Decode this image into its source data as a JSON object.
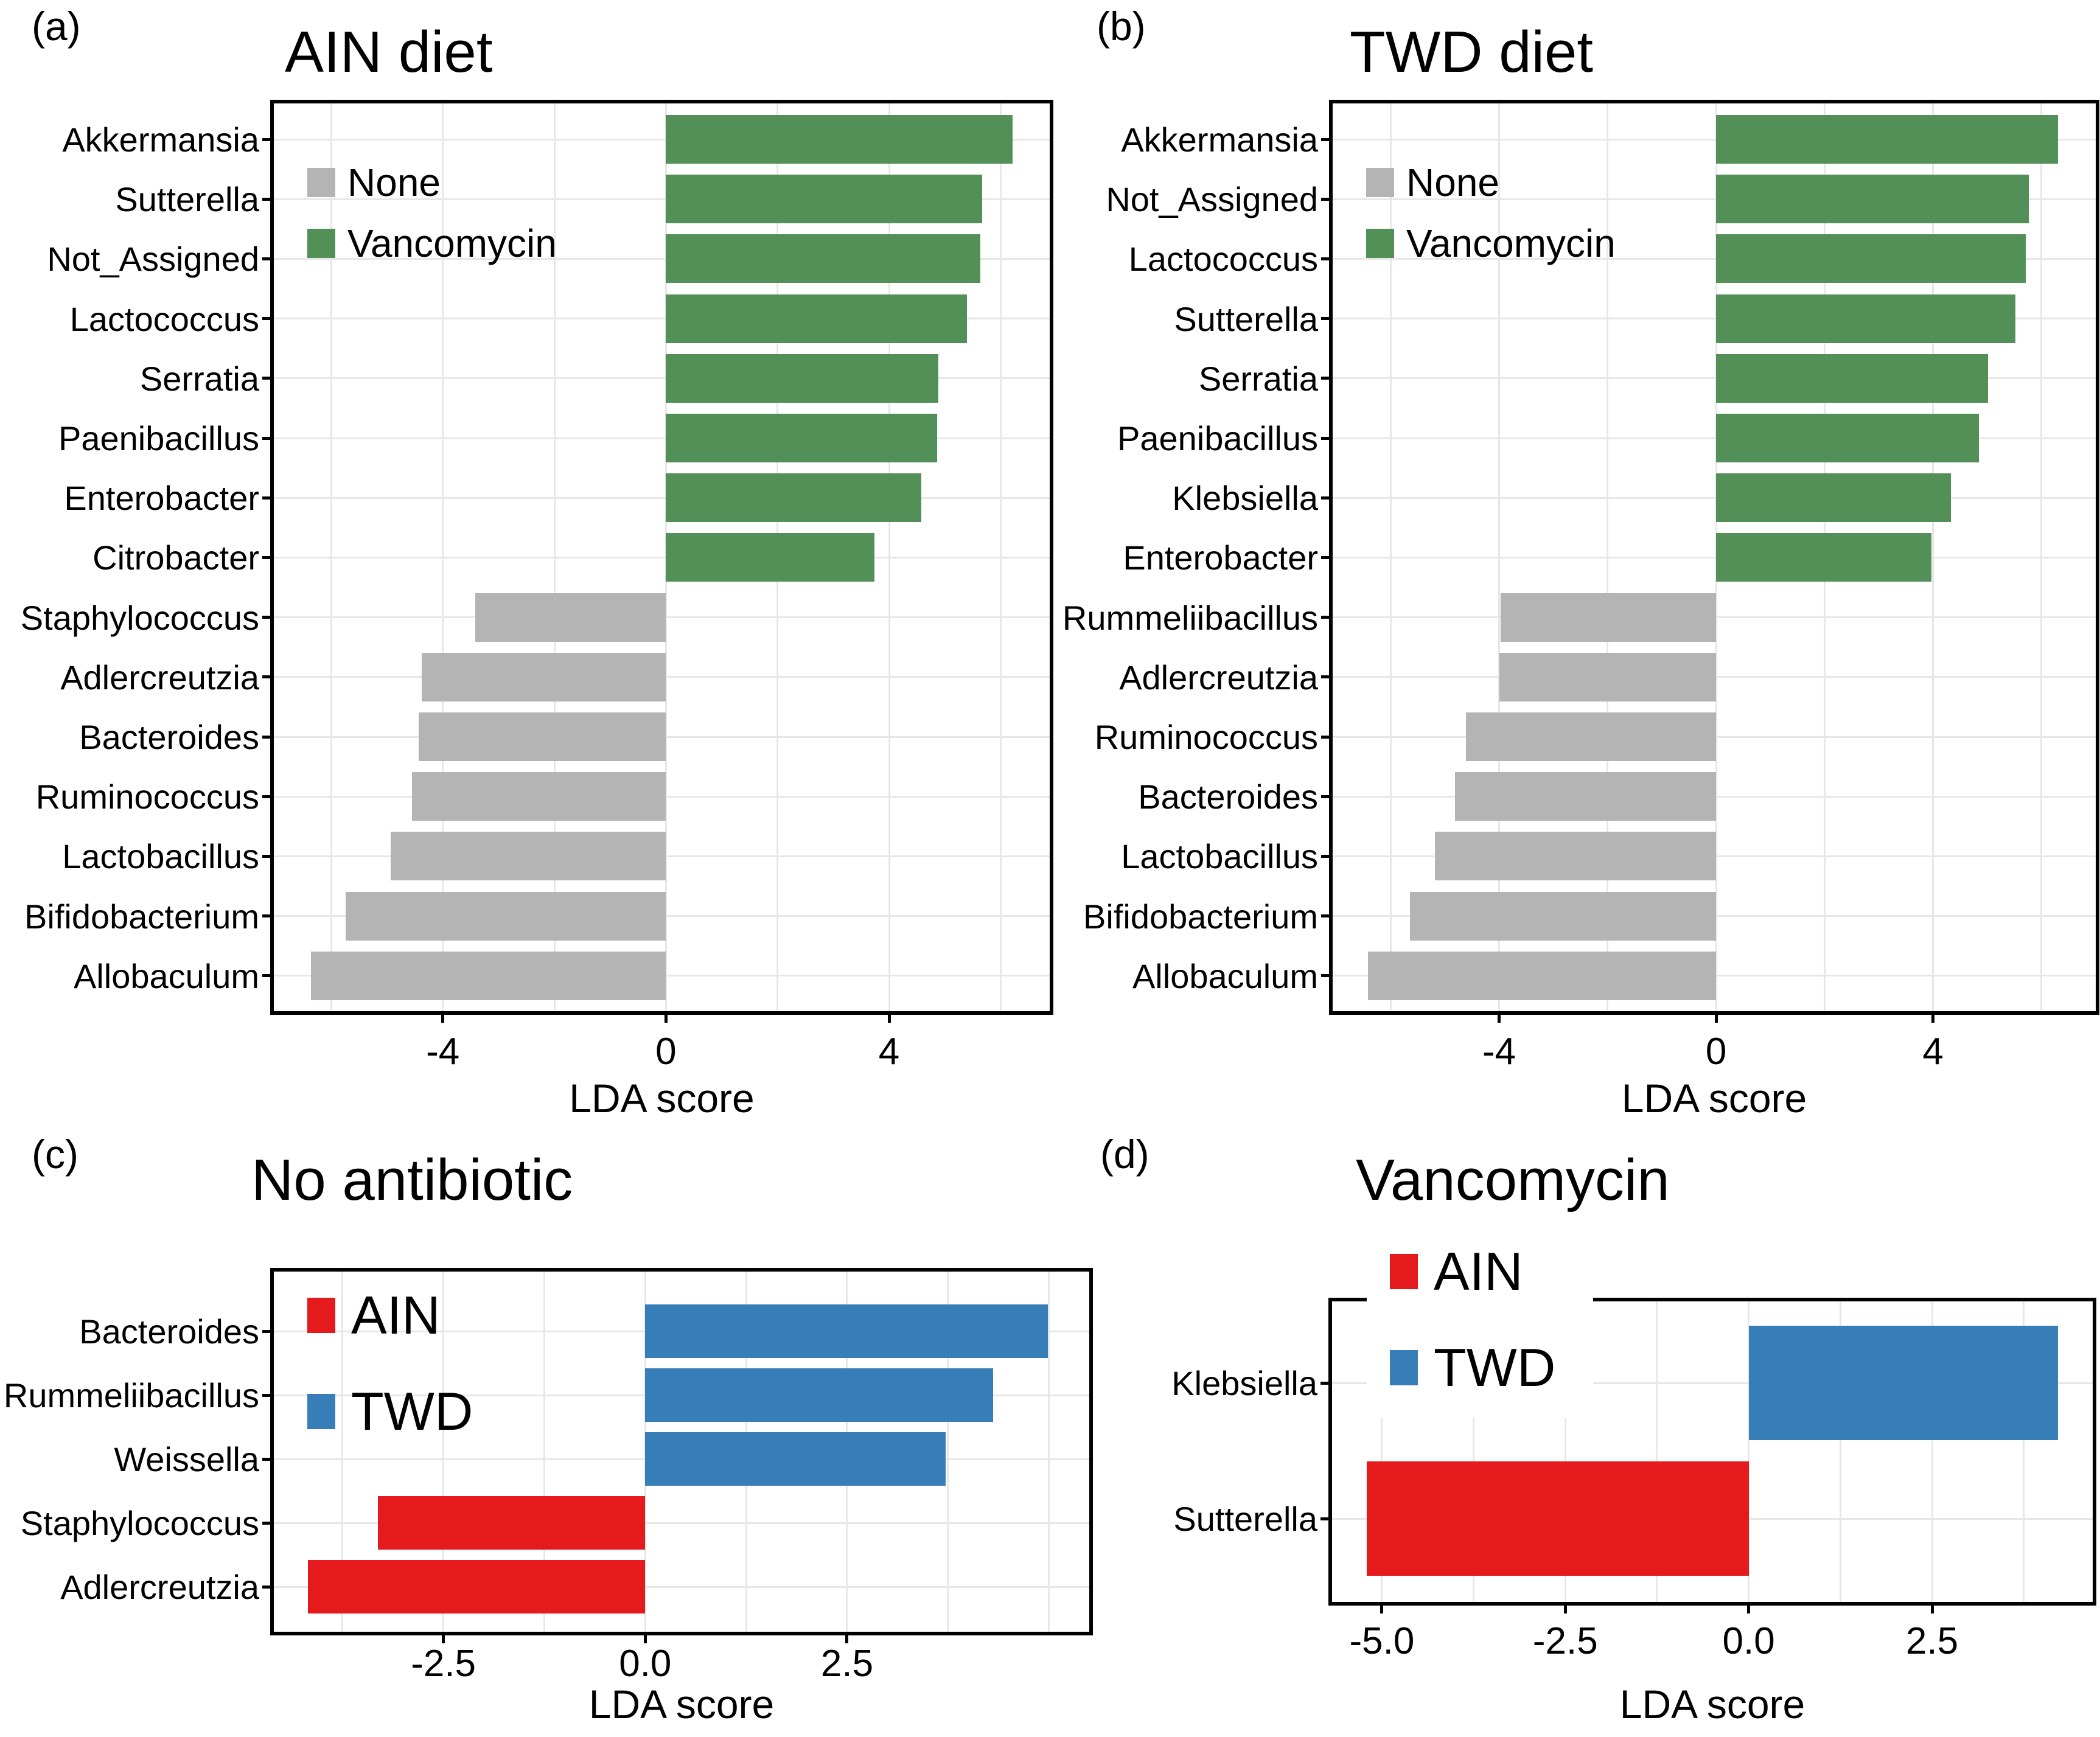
{
  "colors": {
    "none_gray": "#b4b4b4",
    "vancomycin_green": "#529057",
    "ain_red": "#e41a1c",
    "twd_blue": "#377eb8",
    "gridline": "#e7e7e7",
    "axis": "#000000"
  },
  "chart_data": [
    {
      "panel_letter": "(a)",
      "type": "bar",
      "orientation": "horizontal",
      "title": "AIN diet",
      "xlabel": "LDA score",
      "xlim": [
        -7.03,
        6.88
      ],
      "xticks": [
        -4,
        0,
        4
      ],
      "xtick_labels": [
        "-4",
        "0",
        "4"
      ],
      "grid_step": 2,
      "grid": true,
      "legend_position": "top-left-inside",
      "legend": [
        {
          "label": "None",
          "color": "#b4b4b4"
        },
        {
          "label": "Vancomycin",
          "color": "#529057"
        }
      ],
      "categories": [
        "Akkermansia",
        "Sutterella",
        "Not_Assigned",
        "Lactococcus",
        "Serratia",
        "Paenibacillus",
        "Enterobacter",
        "Citrobacter",
        "Staphylococcus",
        "Adlercreutzia",
        "Bacteroides",
        "Ruminococcus",
        "Lactobacillus",
        "Bifidobacterium",
        "Allobaculum"
      ],
      "values": [
        6.21,
        5.67,
        5.64,
        5.4,
        4.88,
        4.86,
        4.58,
        3.74,
        -3.42,
        -4.38,
        -4.43,
        -4.55,
        -4.93,
        -5.74,
        -6.36
      ],
      "groups": [
        "Vancomycin",
        "Vancomycin",
        "Vancomycin",
        "Vancomycin",
        "Vancomycin",
        "Vancomycin",
        "Vancomycin",
        "Vancomycin",
        "None",
        "None",
        "None",
        "None",
        "None",
        "None",
        "None"
      ]
    },
    {
      "panel_letter": "(b)",
      "type": "bar",
      "orientation": "horizontal",
      "title": "TWD diet",
      "xlabel": "LDA score",
      "xlim": [
        -7.07,
        7.0
      ],
      "xticks": [
        -4,
        0,
        4
      ],
      "xtick_labels": [
        "-4",
        "0",
        "4"
      ],
      "grid_step": 2,
      "grid": true,
      "legend_position": "top-left-inside",
      "legend": [
        {
          "label": "None",
          "color": "#b4b4b4"
        },
        {
          "label": "Vancomycin",
          "color": "#529057"
        }
      ],
      "categories": [
        "Akkermansia",
        "Not_Assigned",
        "Lactococcus",
        "Sutterella",
        "Serratia",
        "Paenibacillus",
        "Klebsiella",
        "Enterobacter",
        "Rummeliibacillus",
        "Adlercreutzia",
        "Ruminococcus",
        "Bacteroides",
        "Lactobacillus",
        "Bifidobacterium",
        "Allobaculum"
      ],
      "values": [
        6.3,
        5.77,
        5.71,
        5.52,
        5.01,
        4.85,
        4.33,
        3.97,
        -3.97,
        -4.0,
        -4.61,
        -4.81,
        -5.18,
        -5.65,
        -6.42
      ],
      "groups": [
        "Vancomycin",
        "Vancomycin",
        "Vancomycin",
        "Vancomycin",
        "Vancomycin",
        "Vancomycin",
        "Vancomycin",
        "Vancomycin",
        "None",
        "None",
        "None",
        "None",
        "None",
        "None",
        "None"
      ]
    },
    {
      "panel_letter": "(c)",
      "type": "bar",
      "orientation": "horizontal",
      "title": "No antibiotic",
      "xlabel": "LDA score",
      "xlim": [
        -4.6,
        5.5
      ],
      "xticks": [
        -2.5,
        0,
        2.5
      ],
      "xtick_labels": [
        "-2.5",
        "0.0",
        "2.5"
      ],
      "grid_step": 1.25,
      "grid": true,
      "legend_position": "top-left-inside",
      "legend": [
        {
          "label": "AIN",
          "color": "#e41a1c"
        },
        {
          "label": "TWD",
          "color": "#377eb8"
        }
      ],
      "categories": [
        "Bacteroides",
        "Rummeliibacillus",
        "Weissella",
        "Staphylococcus",
        "Adlercreutzia"
      ],
      "values": [
        4.99,
        4.31,
        3.72,
        -3.31,
        -4.18
      ],
      "groups": [
        "TWD",
        "TWD",
        "TWD",
        "AIN",
        "AIN"
      ]
    },
    {
      "panel_letter": "(d)",
      "type": "bar",
      "orientation": "horizontal",
      "title": "Vancomycin",
      "xlabel": "LDA score",
      "xlim": [
        -5.68,
        4.69
      ],
      "xticks": [
        -5,
        -2.5,
        0,
        2.5
      ],
      "xtick_labels": [
        "-5.0",
        "-2.5",
        "0.0",
        "2.5"
      ],
      "grid_step": 1.25,
      "grid": true,
      "legend_position": "top-left-overlapping-border",
      "legend": [
        {
          "label": "AIN",
          "color": "#e41a1c"
        },
        {
          "label": "TWD",
          "color": "#377eb8"
        }
      ],
      "categories": [
        "Klebsiella",
        "Sutterella"
      ],
      "values": [
        4.22,
        -5.21
      ],
      "groups": [
        "TWD",
        "AIN"
      ]
    }
  ]
}
